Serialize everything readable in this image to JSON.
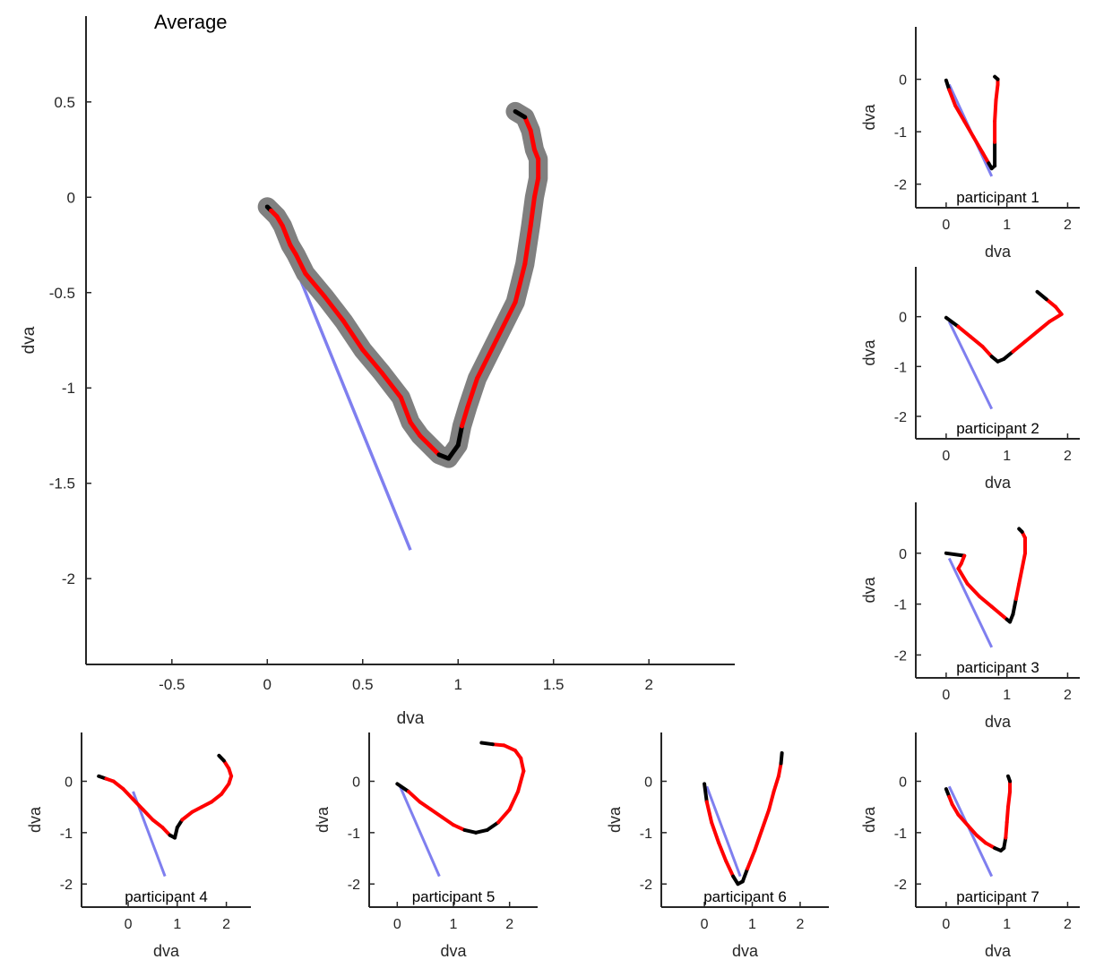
{
  "colors": {
    "axis": "#262626",
    "trajectory_fast": "#ff0000",
    "trajectory_slow": "#000000",
    "error_band": "#808080",
    "reference_line": "#7f7fef"
  },
  "chart_data": [
    {
      "type": "line",
      "title": "Average",
      "xlabel": "dva",
      "ylabel": "dva",
      "xlim": [
        -0.95,
        2.45
      ],
      "ylim": [
        -2.45,
        0.95
      ],
      "xticks": [
        -0.5,
        0,
        0.5,
        1,
        1.5,
        2
      ],
      "xtick_labels": [
        "-0.5",
        "0",
        "0.5",
        "1",
        "1.5",
        "2"
      ],
      "yticks": [
        0.5,
        0,
        -0.5,
        -1,
        -1.5,
        -2
      ],
      "ytick_labels": [
        "0.5",
        "0",
        "-0.5",
        "-1",
        "-1.5",
        "-2"
      ],
      "reference_line": {
        "x": [
          0.1,
          0.75
        ],
        "y": [
          -0.25,
          -1.85
        ]
      },
      "trajectory": {
        "x": [
          0.0,
          0.02,
          0.05,
          0.08,
          0.1,
          0.12,
          0.15,
          0.2,
          0.3,
          0.4,
          0.5,
          0.6,
          0.7,
          0.75,
          0.8,
          0.85,
          0.9,
          0.95,
          1.0,
          1.02,
          1.05,
          1.1,
          1.2,
          1.3,
          1.35,
          1.38,
          1.4,
          1.42,
          1.42,
          1.4,
          1.38,
          1.35,
          1.3
        ],
        "y": [
          -0.05,
          -0.07,
          -0.1,
          -0.15,
          -0.2,
          -0.25,
          -0.3,
          -0.4,
          -0.52,
          -0.65,
          -0.8,
          -0.92,
          -1.05,
          -1.18,
          -1.25,
          -1.3,
          -1.35,
          -1.37,
          -1.3,
          -1.2,
          -1.1,
          -0.95,
          -0.75,
          -0.55,
          -0.35,
          -0.15,
          0.0,
          0.1,
          0.2,
          0.25,
          0.35,
          0.42,
          0.45
        ]
      },
      "band_width": 0.05
    },
    {
      "type": "line",
      "title": "participant 1",
      "xlabel": "dva",
      "ylabel": "dva",
      "xlim": [
        -0.5,
        2.2
      ],
      "ylim": [
        -2.45,
        1.0
      ],
      "xticks": [
        0,
        1,
        2
      ],
      "xtick_labels": [
        "0",
        "1",
        "2"
      ],
      "yticks": [
        0,
        -1,
        -2
      ],
      "ytick_labels": [
        "0",
        "-1",
        "-2"
      ],
      "reference_line": {
        "x": [
          0.05,
          0.75
        ],
        "y": [
          -0.1,
          -1.85
        ]
      },
      "trajectory": {
        "x": [
          0.0,
          0.05,
          0.15,
          0.3,
          0.45,
          0.6,
          0.7,
          0.75,
          0.8,
          0.8,
          0.8,
          0.82,
          0.85,
          0.85,
          0.8
        ],
        "y": [
          -0.02,
          -0.2,
          -0.5,
          -0.8,
          -1.1,
          -1.4,
          -1.6,
          -1.7,
          -1.65,
          -1.2,
          -0.8,
          -0.4,
          -0.1,
          0.0,
          0.05
        ]
      }
    },
    {
      "type": "line",
      "title": "participant 2",
      "xlabel": "dva",
      "ylabel": "dva",
      "xlim": [
        -0.5,
        2.2
      ],
      "ylim": [
        -2.45,
        1.0
      ],
      "xticks": [
        0,
        1,
        2
      ],
      "xtick_labels": [
        "0",
        "1",
        "2"
      ],
      "yticks": [
        0,
        -1,
        -2
      ],
      "ytick_labels": [
        "0",
        "-1",
        "-2"
      ],
      "reference_line": {
        "x": [
          0.05,
          0.75
        ],
        "y": [
          -0.1,
          -1.85
        ]
      },
      "trajectory": {
        "x": [
          0.0,
          0.2,
          0.4,
          0.6,
          0.75,
          0.85,
          0.95,
          1.1,
          1.3,
          1.5,
          1.7,
          1.9,
          1.8,
          1.65,
          1.5
        ],
        "y": [
          -0.02,
          -0.2,
          -0.4,
          -0.6,
          -0.8,
          -0.9,
          -0.85,
          -0.7,
          -0.5,
          -0.3,
          -0.1,
          0.05,
          0.2,
          0.35,
          0.5
        ]
      }
    },
    {
      "type": "line",
      "title": "participant 3",
      "xlabel": "dva",
      "ylabel": "dva",
      "xlim": [
        -0.5,
        2.2
      ],
      "ylim": [
        -2.45,
        1.0
      ],
      "xticks": [
        0,
        1,
        2
      ],
      "xtick_labels": [
        "0",
        "1",
        "2"
      ],
      "yticks": [
        0,
        -1,
        -2
      ],
      "ytick_labels": [
        "0",
        "-1",
        "-2"
      ],
      "reference_line": {
        "x": [
          0.05,
          0.75
        ],
        "y": [
          -0.1,
          -1.85
        ]
      },
      "trajectory": {
        "x": [
          0.0,
          0.3,
          0.25,
          0.2,
          0.35,
          0.55,
          0.75,
          0.9,
          1.0,
          1.05,
          1.1,
          1.15,
          1.2,
          1.25,
          1.3,
          1.3,
          1.25,
          1.2
        ],
        "y": [
          0.0,
          -0.05,
          -0.2,
          -0.3,
          -0.6,
          -0.85,
          -1.05,
          -1.2,
          -1.3,
          -1.35,
          -1.2,
          -0.9,
          -0.6,
          -0.3,
          0.0,
          0.3,
          0.42,
          0.48
        ]
      }
    },
    {
      "type": "line",
      "title": "participant 4",
      "xlabel": "dva",
      "ylabel": "dva",
      "xlim": [
        -0.95,
        2.5
      ],
      "ylim": [
        -2.45,
        0.95
      ],
      "xticks": [
        0,
        1,
        2
      ],
      "xtick_labels": [
        "0",
        "1",
        "2"
      ],
      "yticks": [
        0,
        -1,
        -2
      ],
      "ytick_labels": [
        "0",
        "-1",
        "-2"
      ],
      "reference_line": {
        "x": [
          0.1,
          0.75
        ],
        "y": [
          -0.2,
          -1.85
        ]
      },
      "trajectory": {
        "x": [
          -0.6,
          -0.45,
          -0.3,
          -0.1,
          0.1,
          0.3,
          0.5,
          0.7,
          0.85,
          0.95,
          1.0,
          1.1,
          1.3,
          1.5,
          1.7,
          1.9,
          2.05,
          2.1,
          2.05,
          1.95,
          1.85
        ],
        "y": [
          0.1,
          0.05,
          0.0,
          -0.15,
          -0.35,
          -0.55,
          -0.75,
          -0.9,
          -1.05,
          -1.1,
          -0.9,
          -0.75,
          -0.6,
          -0.5,
          -0.4,
          -0.25,
          -0.05,
          0.1,
          0.25,
          0.4,
          0.5
        ]
      }
    },
    {
      "type": "line",
      "title": "participant 5",
      "xlabel": "dva",
      "ylabel": "dva",
      "xlim": [
        -0.5,
        2.5
      ],
      "ylim": [
        -2.45,
        0.95
      ],
      "xticks": [
        0,
        1,
        2
      ],
      "xtick_labels": [
        "0",
        "1",
        "2"
      ],
      "yticks": [
        0,
        -1,
        -2
      ],
      "ytick_labels": [
        "0",
        "-1",
        "-2"
      ],
      "reference_line": {
        "x": [
          0.05,
          0.75
        ],
        "y": [
          -0.1,
          -1.85
        ]
      },
      "trajectory": {
        "x": [
          0.0,
          0.2,
          0.4,
          0.6,
          0.8,
          1.0,
          1.2,
          1.4,
          1.6,
          1.8,
          2.0,
          2.15,
          2.25,
          2.2,
          2.1,
          1.9,
          1.7,
          1.5
        ],
        "y": [
          -0.05,
          -0.2,
          -0.4,
          -0.55,
          -0.7,
          -0.85,
          -0.95,
          -1.0,
          -0.95,
          -0.8,
          -0.55,
          -0.2,
          0.2,
          0.45,
          0.6,
          0.7,
          0.72,
          0.75
        ]
      }
    },
    {
      "type": "line",
      "title": "participant 6",
      "xlabel": "dva",
      "ylabel": "dva",
      "xlim": [
        -0.9,
        2.6
      ],
      "ylim": [
        -2.45,
        0.95
      ],
      "xticks": [
        0,
        1,
        2
      ],
      "xtick_labels": [
        "0",
        "1",
        "2"
      ],
      "yticks": [
        0,
        -1,
        -2
      ],
      "ytick_labels": [
        "0",
        "-1",
        "-2"
      ],
      "reference_line": {
        "x": [
          0.05,
          0.75
        ],
        "y": [
          -0.1,
          -1.85
        ]
      },
      "trajectory": {
        "x": [
          0.0,
          0.05,
          0.15,
          0.3,
          0.45,
          0.6,
          0.7,
          0.8,
          0.9,
          1.05,
          1.2,
          1.35,
          1.45,
          1.55,
          1.6,
          1.62
        ],
        "y": [
          -0.05,
          -0.4,
          -0.8,
          -1.2,
          -1.55,
          -1.85,
          -2.0,
          -1.95,
          -1.7,
          -1.35,
          -0.95,
          -0.55,
          -0.2,
          0.1,
          0.35,
          0.55
        ]
      }
    },
    {
      "type": "line",
      "title": "participant 7",
      "xlabel": "dva",
      "ylabel": "dva",
      "xlim": [
        -0.5,
        2.2
      ],
      "ylim": [
        -2.45,
        0.95
      ],
      "xticks": [
        0,
        1,
        2
      ],
      "xtick_labels": [
        "0",
        "1",
        "2"
      ],
      "yticks": [
        0,
        -1,
        -2
      ],
      "ytick_labels": [
        "0",
        "-1",
        "-2"
      ],
      "reference_line": {
        "x": [
          0.05,
          0.75
        ],
        "y": [
          -0.1,
          -1.85
        ]
      },
      "trajectory": {
        "x": [
          0.0,
          0.05,
          0.1,
          0.2,
          0.35,
          0.5,
          0.65,
          0.8,
          0.9,
          0.95,
          0.98,
          1.0,
          1.02,
          1.05,
          1.05,
          1.02
        ],
        "y": [
          -0.15,
          -0.3,
          -0.45,
          -0.65,
          -0.85,
          -1.05,
          -1.2,
          -1.3,
          -1.35,
          -1.3,
          -1.1,
          -0.8,
          -0.5,
          -0.2,
          0.0,
          0.1
        ]
      }
    }
  ]
}
